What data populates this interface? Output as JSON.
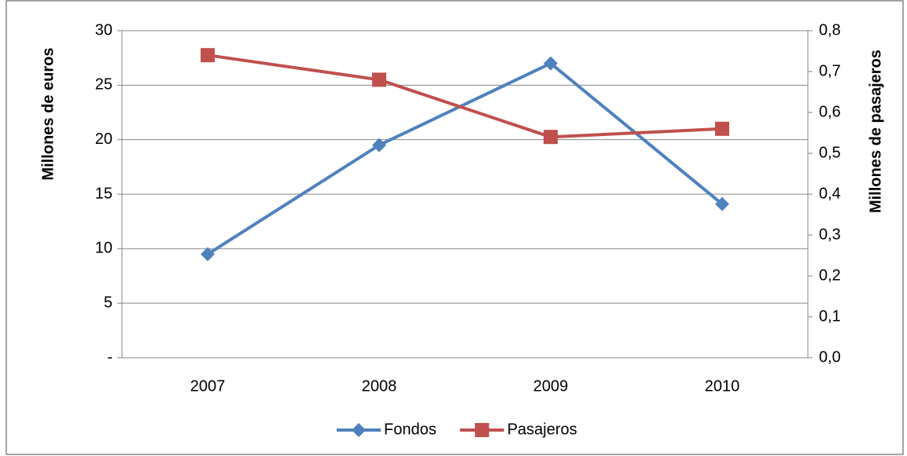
{
  "chart_data": {
    "type": "line",
    "categories": [
      "2007",
      "2008",
      "2009",
      "2010"
    ],
    "series": [
      {
        "name": "Fondos",
        "color": "#4f81bd",
        "marker": "diamond",
        "values": [
          9.5,
          19.5,
          27.0,
          14.1
        ]
      },
      {
        "name": "Pasajeros",
        "color": "#c0504d",
        "marker": "square",
        "axis": "y2",
        "values": [
          0.74,
          0.68,
          0.54,
          0.56
        ]
      }
    ],
    "ylabel": "Millones de euros",
    "y2label": "Millones de pasajeros",
    "ylim": [
      0,
      30
    ],
    "yticks": [
      {
        "value": 0,
        "label": "-"
      },
      5,
      10,
      15,
      20,
      25,
      30
    ],
    "y2lim": [
      0,
      0.8
    ],
    "y2ticks": [
      {
        "value": 0,
        "label": "0,0"
      },
      {
        "value": 0.1,
        "label": "0,1"
      },
      {
        "value": 0.2,
        "label": "0,2"
      },
      {
        "value": 0.3,
        "label": "0,3"
      },
      {
        "value": 0.4,
        "label": "0,4"
      },
      {
        "value": 0.5,
        "label": "0,5"
      },
      {
        "value": 0.6,
        "label": "0,6"
      },
      {
        "value": 0.7,
        "label": "0,7"
      },
      {
        "value": 0.8,
        "label": "0,8"
      }
    ],
    "grid": true,
    "legend": "bottom"
  }
}
